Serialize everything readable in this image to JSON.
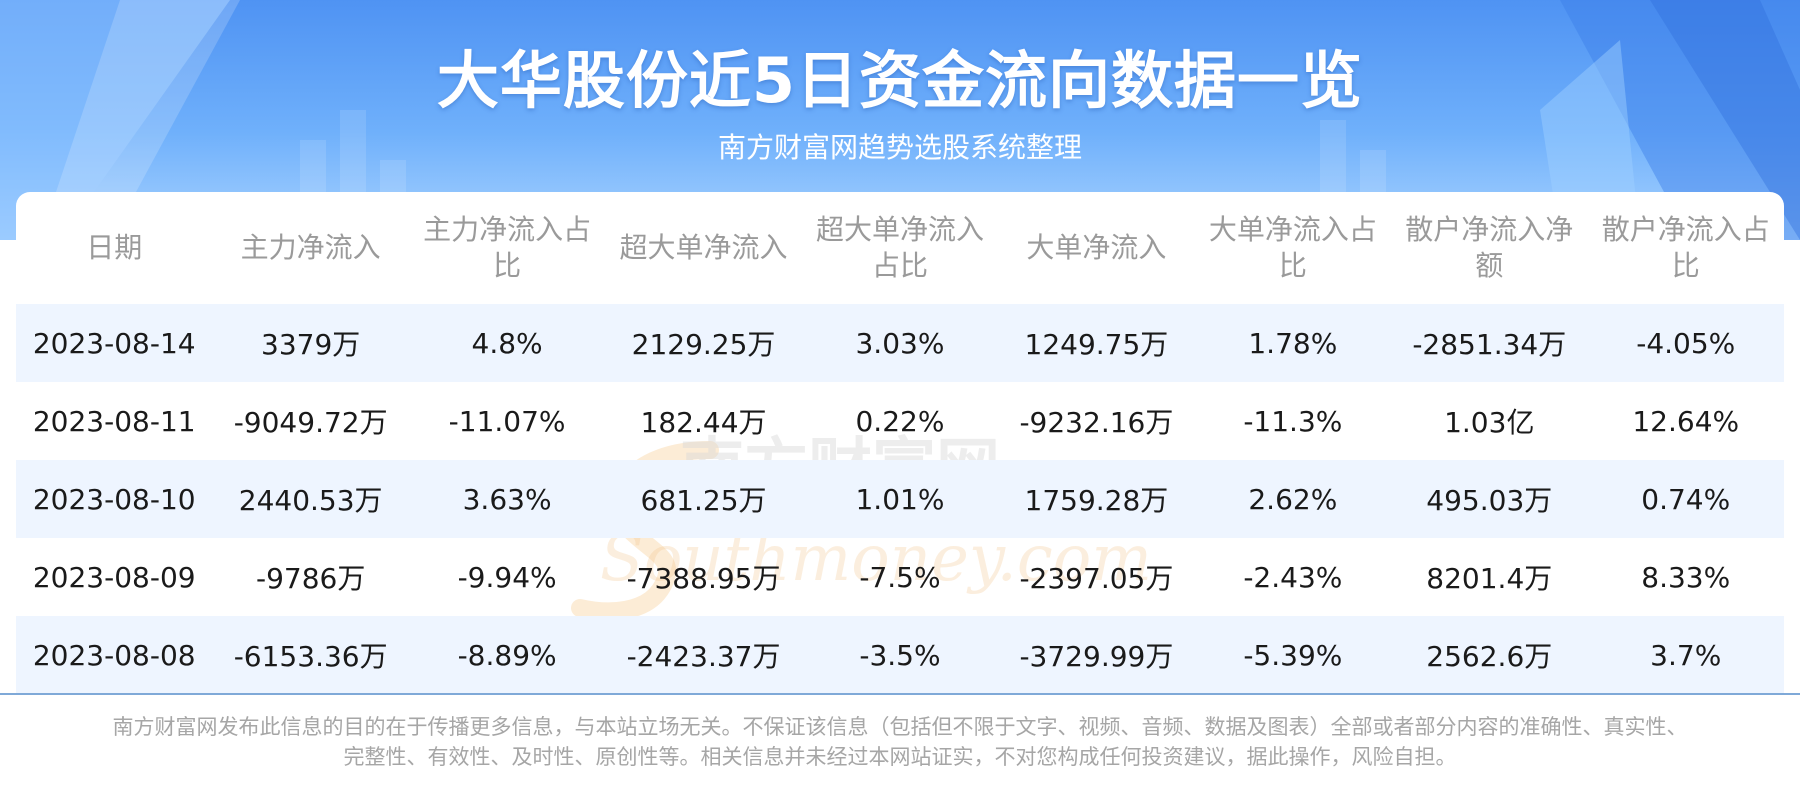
{
  "title": "大华股份近5日资金流向数据一览",
  "subtitle": "南方财富网趋势选股系统整理",
  "colors": {
    "header_blue": "#4f93f3",
    "row_highlight": "#eef5ff",
    "header_text": "#9a9a9a",
    "cell_text": "#1a1a1a"
  },
  "chart_data": {
    "type": "table",
    "columns": [
      "日期",
      "主力净流入",
      "主力净流入占比",
      "超大单净流入",
      "超大单净流入占比",
      "大单净流入",
      "大单净流入占比",
      "散户净流入净额",
      "散户净流入占比"
    ],
    "rows": [
      [
        "2023-08-14",
        "3379万",
        "4.8%",
        "2129.25万",
        "3.03%",
        "1249.75万",
        "1.78%",
        "-2851.34万",
        "-4.05%"
      ],
      [
        "2023-08-11",
        "-9049.72万",
        "-11.07%",
        "182.44万",
        "0.22%",
        "-9232.16万",
        "-11.3%",
        "1.03亿",
        "12.64%"
      ],
      [
        "2023-08-10",
        "2440.53万",
        "3.63%",
        "681.25万",
        "1.01%",
        "1759.28万",
        "2.62%",
        "495.03万",
        "0.74%"
      ],
      [
        "2023-08-09",
        "-9786万",
        "-9.94%",
        "-7388.95万",
        "-7.5%",
        "-2397.05万",
        "-2.43%",
        "8201.4万",
        "8.33%"
      ],
      [
        "2023-08-08",
        "-6153.36万",
        "-8.89%",
        "-2423.37万",
        "-3.5%",
        "-3729.99万",
        "-5.39%",
        "2562.6万",
        "3.7%"
      ]
    ]
  },
  "watermark": {
    "cn": "南方财富网",
    "en": "Southmoney.com"
  },
  "footer": {
    "line1": "南方财富网发布此信息的目的在于传播更多信息，与本站立场无关。不保证该信息（包括但不限于文字、视频、音频、数据及图表）全部或者部分内容的准确性、真实性、",
    "line2": "完整性、有效性、及时性、原创性等。相关信息并未经过本网站证实，不对您构成任何投资建议，据此操作，风险自担。"
  }
}
